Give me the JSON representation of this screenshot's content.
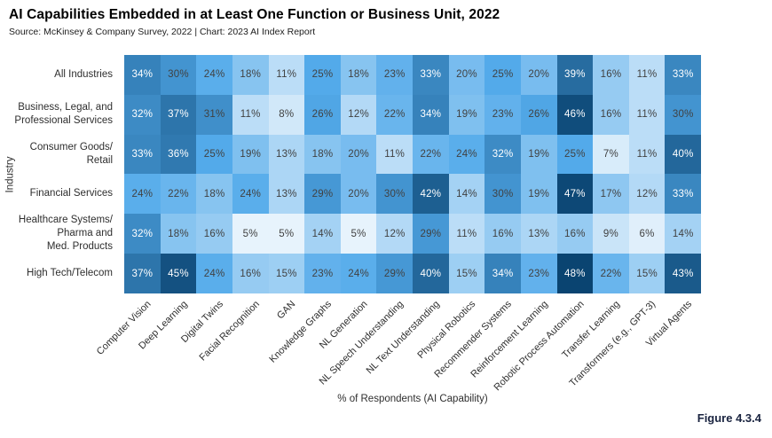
{
  "header": {
    "title": "AI Capabilities Embedded in at Least One Function or Business Unit, 2022",
    "source": "Source: McKinsey & Company Survey, 2022 | Chart: 2023 AI Index Report"
  },
  "figure_label": "Figure 4.3.4",
  "chart_data": {
    "type": "heatmap",
    "title": "AI Capabilities Embedded in at Least One Function or Business Unit, 2022",
    "xlabel": "% of Respondents (AI Capability)",
    "ylabel": "Industry",
    "cell_value_suffix": "%",
    "columns": [
      "Computer Vision",
      "Deep Learning",
      "Digital Twins",
      "Facial Recognition",
      "GAN",
      "Knowledge Graphs",
      "NL Generation",
      "NL Speech Understanding",
      "NL Text Understanding",
      "Physical Robotics",
      "Recommender Systems",
      "Reinforcement Learning",
      "Robotic Process Automation",
      "Transfer Learning",
      "Transformers (e.g., GPT-3)",
      "Virtual Agents"
    ],
    "rows": [
      {
        "label": "All Industries",
        "values": [
          34,
          30,
          24,
          18,
          11,
          25,
          18,
          23,
          33,
          20,
          25,
          20,
          39,
          16,
          11,
          33
        ]
      },
      {
        "label": "Business, Legal, and\nProfessional Services",
        "values": [
          32,
          37,
          31,
          11,
          8,
          26,
          12,
          22,
          34,
          19,
          23,
          26,
          46,
          16,
          11,
          30
        ]
      },
      {
        "label": "Consumer Goods/\nRetail",
        "values": [
          33,
          36,
          25,
          19,
          13,
          18,
          20,
          11,
          22,
          24,
          32,
          19,
          25,
          7,
          11,
          40
        ]
      },
      {
        "label": "Financial Services",
        "values": [
          24,
          22,
          18,
          24,
          13,
          29,
          20,
          30,
          42,
          14,
          30,
          19,
          47,
          17,
          12,
          33
        ]
      },
      {
        "label": "Healthcare Systems/\nPharma and\nMed. Products",
        "values": [
          32,
          18,
          16,
          5,
          5,
          14,
          5,
          12,
          29,
          11,
          16,
          13,
          16,
          9,
          6,
          14
        ]
      },
      {
        "label": "High Tech/Telecom",
        "values": [
          37,
          45,
          24,
          16,
          15,
          23,
          24,
          29,
          40,
          15,
          34,
          23,
          48,
          22,
          15,
          43
        ]
      }
    ],
    "color_scale": {
      "stops": [
        {
          "value": 5,
          "color": "#E7F3FC"
        },
        {
          "value": 25,
          "color": "#53AAEA"
        },
        {
          "value": 48,
          "color": "#0A4471"
        }
      ]
    },
    "text_colors": {
      "dark": "#414141",
      "light": "#FFFFFF",
      "light_threshold": 32
    },
    "grid": false,
    "legend": "none"
  }
}
